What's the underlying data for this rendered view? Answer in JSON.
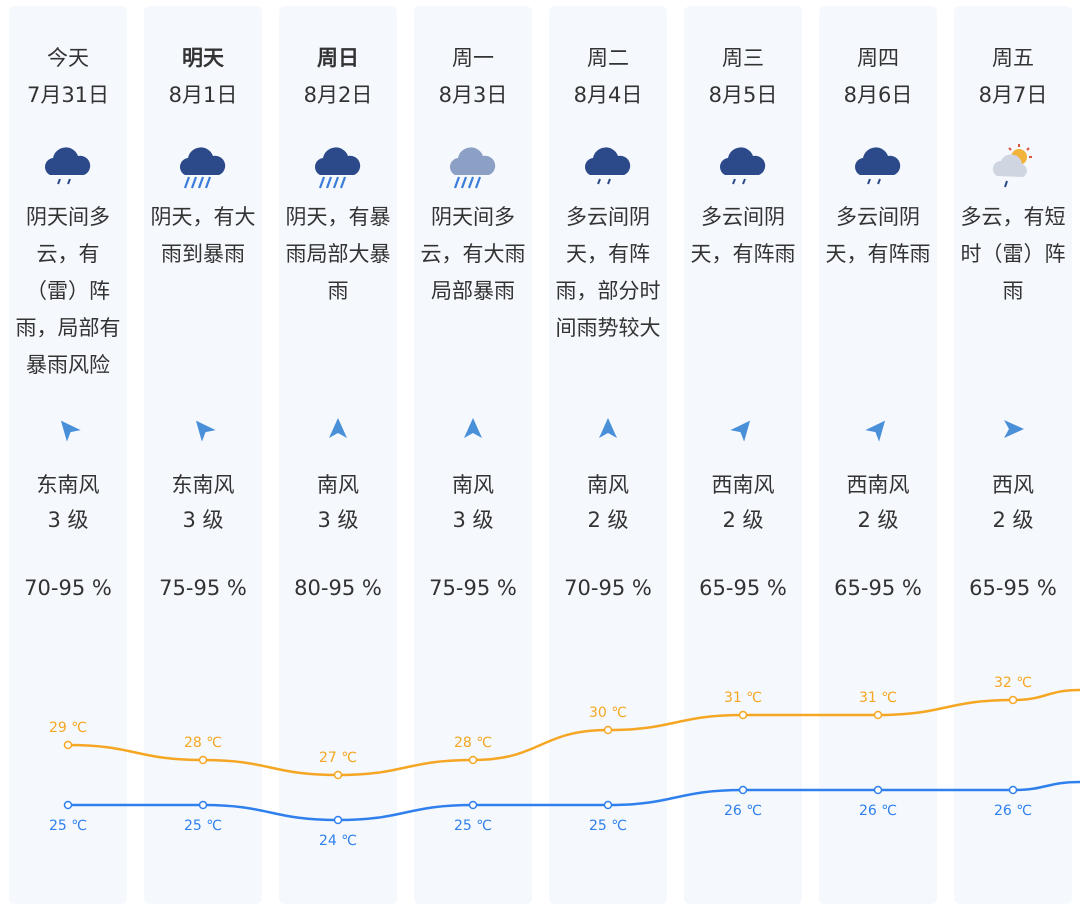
{
  "days": [
    {
      "day": "今天",
      "date": "7月31日",
      "bold": false,
      "icon": "cloud-rain-light-icon",
      "desc": [
        "阴天间多",
        "云，有",
        "（雷）阵",
        "雨，局部有",
        "暴雨风险"
      ],
      "wind_dir_icon": "wind-arrow-southeast-icon",
      "wind_angle": -40,
      "wind": "东南风",
      "wind_level": "3 级",
      "humidity": "70-95 %",
      "high": "29 ℃",
      "low": "25 ℃",
      "high_val": 29,
      "low_val": 25
    },
    {
      "day": "明天",
      "date": "8月1日",
      "bold": true,
      "icon": "cloud-heavy-rain-icon",
      "desc": [
        "阴天，有大",
        "雨到暴雨"
      ],
      "wind_dir_icon": "wind-arrow-southeast-icon",
      "wind_angle": -40,
      "wind": "东南风",
      "wind_level": "3 级",
      "humidity": "75-95 %",
      "high": "28 ℃",
      "low": "25 ℃",
      "high_val": 28,
      "low_val": 25
    },
    {
      "day": "周日",
      "date": "8月2日",
      "bold": true,
      "icon": "cloud-heavy-rain-icon",
      "desc": [
        "阴天，有暴",
        "雨局部大暴",
        "雨"
      ],
      "wind_dir_icon": "wind-arrow-south-icon",
      "wind_angle": 0,
      "wind": "南风",
      "wind_level": "3 级",
      "humidity": "80-95 %",
      "high": "27 ℃",
      "low": "24 ℃",
      "high_val": 27,
      "low_val": 24
    },
    {
      "day": "周一",
      "date": "8月3日",
      "bold": false,
      "icon": "cloud-heavy-rain-light-icon",
      "desc": [
        "阴天间多",
        "云，有大雨",
        "局部暴雨"
      ],
      "wind_dir_icon": "wind-arrow-south-icon",
      "wind_angle": 0,
      "wind": "南风",
      "wind_level": "3 级",
      "humidity": "75-95 %",
      "high": "28 ℃",
      "low": "25 ℃",
      "high_val": 28,
      "low_val": 25
    },
    {
      "day": "周二",
      "date": "8月4日",
      "bold": false,
      "icon": "cloud-rain-light-icon",
      "desc": [
        "多云间阴",
        "天，有阵",
        "雨，部分时",
        "间雨势较大"
      ],
      "wind_dir_icon": "wind-arrow-south-icon",
      "wind_angle": 0,
      "wind": "南风",
      "wind_level": "2 级",
      "humidity": "70-95 %",
      "high": "30 ℃",
      "low": "25 ℃",
      "high_val": 30,
      "low_val": 25
    },
    {
      "day": "周三",
      "date": "8月5日",
      "bold": false,
      "icon": "cloud-rain-light-icon",
      "desc": [
        "多云间阴",
        "天，有阵雨"
      ],
      "wind_dir_icon": "wind-arrow-southwest-icon",
      "wind_angle": 40,
      "wind": "西南风",
      "wind_level": "2 级",
      "humidity": "65-95 %",
      "high": "31 ℃",
      "low": "26 ℃",
      "high_val": 31,
      "low_val": 26
    },
    {
      "day": "周四",
      "date": "8月6日",
      "bold": false,
      "icon": "cloud-rain-light-icon",
      "desc": [
        "多云间阴",
        "天，有阵雨"
      ],
      "wind_dir_icon": "wind-arrow-southwest-icon",
      "wind_angle": 40,
      "wind": "西南风",
      "wind_level": "2 级",
      "humidity": "65-95 %",
      "high": "31 ℃",
      "low": "26 ℃",
      "high_val": 31,
      "low_val": 26
    },
    {
      "day": "周五",
      "date": "8月7日",
      "bold": false,
      "icon": "sun-cloud-thunder-shower-icon",
      "desc": [
        "多云，有短",
        "时（雷）阵",
        "雨"
      ],
      "wind_dir_icon": "wind-arrow-west-icon",
      "wind_angle": 90,
      "wind": "西风",
      "wind_level": "2 级",
      "humidity": "65-95 %",
      "high": "32 ℃",
      "low": "26 ℃",
      "high_val": 32,
      "low_val": 26
    }
  ],
  "colors": {
    "high": "#f5a623",
    "low": "#2f80ed",
    "arrow": "#4a90d9",
    "cloud": "#2c4a8a",
    "bg": "#f5f8fd"
  }
}
